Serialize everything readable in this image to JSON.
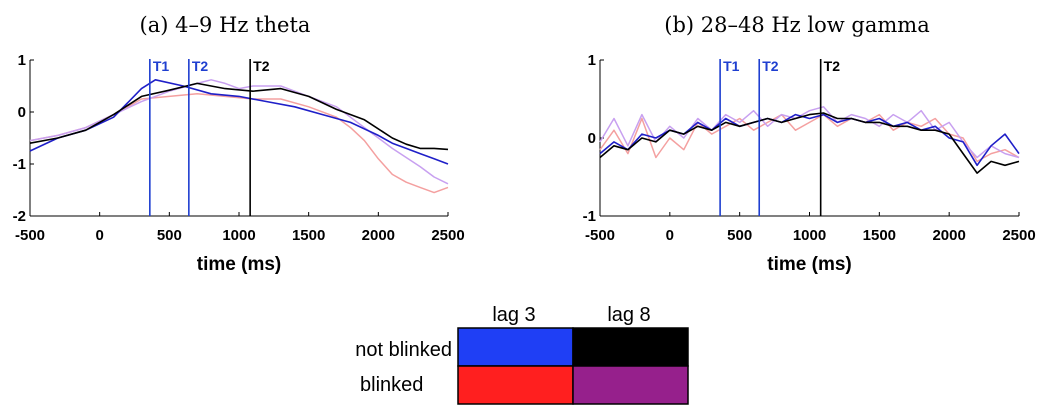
{
  "chart_data": [
    {
      "type": "line",
      "title": "(a) 4–9 Hz theta",
      "xlabel": "time (ms)",
      "ylabel": "",
      "xlim": [
        -500,
        2500
      ],
      "ylim": [
        -2,
        1
      ],
      "xticks": [
        -500,
        0,
        500,
        1000,
        1500,
        2000,
        2500
      ],
      "yticks": [
        -2,
        -1,
        0,
        1
      ],
      "markers": [
        {
          "label": "T1",
          "x": 360,
          "color": "#1f3fd0"
        },
        {
          "label": "T2",
          "x": 640,
          "color": "#1f3fd0"
        },
        {
          "label": "T2",
          "x": 1080,
          "color": "#000000"
        }
      ],
      "series": [
        {
          "group": "lag 3 / blinked",
          "color": "#f4a0a0",
          "x": [
            -500,
            -300,
            -100,
            100,
            300,
            500,
            700,
            900,
            1100,
            1300,
            1500,
            1700,
            1800,
            1900,
            2000,
            2100,
            2200,
            2300,
            2400,
            2500
          ],
          "y": [
            -0.55,
            -0.45,
            -0.3,
            -0.05,
            0.25,
            0.3,
            0.35,
            0.3,
            0.25,
            0.25,
            0.1,
            -0.1,
            -0.3,
            -0.55,
            -0.9,
            -1.2,
            -1.35,
            -1.45,
            -1.55,
            -1.45
          ]
        },
        {
          "group": "lag 8 / blinked",
          "color": "#c8a0f0",
          "x": [
            -500,
            -300,
            -100,
            100,
            300,
            500,
            700,
            800,
            900,
            1000,
            1100,
            1300,
            1500,
            1700,
            1900,
            2100,
            2300,
            2400,
            2500
          ],
          "y": [
            -0.55,
            -0.45,
            -0.3,
            -0.05,
            0.2,
            0.4,
            0.55,
            0.62,
            0.55,
            0.45,
            0.5,
            0.5,
            0.3,
            0.1,
            -0.3,
            -0.7,
            -1.05,
            -1.25,
            -1.38
          ]
        },
        {
          "group": "lag 3 / not blinked",
          "color": "#1f1fc8",
          "x": [
            -500,
            -300,
            -100,
            100,
            300,
            400,
            600,
            800,
            1000,
            1200,
            1400,
            1600,
            1800,
            2000,
            2100,
            2200,
            2300,
            2400,
            2500
          ],
          "y": [
            -0.75,
            -0.5,
            -0.35,
            -0.1,
            0.45,
            0.62,
            0.5,
            0.35,
            0.3,
            0.2,
            0.1,
            -0.05,
            -0.2,
            -0.45,
            -0.6,
            -0.7,
            -0.8,
            -0.9,
            -1.0
          ]
        },
        {
          "group": "lag 8 / not blinked",
          "color": "#000000",
          "x": [
            -500,
            -300,
            -100,
            100,
            300,
            500,
            700,
            900,
            1100,
            1300,
            1500,
            1700,
            1900,
            2100,
            2200,
            2300,
            2400,
            2500
          ],
          "y": [
            -0.6,
            -0.5,
            -0.35,
            -0.05,
            0.3,
            0.42,
            0.55,
            0.45,
            0.4,
            0.45,
            0.3,
            0.05,
            -0.15,
            -0.5,
            -0.62,
            -0.7,
            -0.7,
            -0.72
          ]
        }
      ]
    },
    {
      "type": "line",
      "title": "(b) 28–48 Hz low gamma",
      "xlabel": "time (ms)",
      "ylabel": "",
      "xlim": [
        -500,
        2500
      ],
      "ylim": [
        -1,
        1
      ],
      "xticks": [
        -500,
        0,
        500,
        1000,
        1500,
        2000,
        2500
      ],
      "yticks": [
        -1,
        0,
        1
      ],
      "markers": [
        {
          "label": "T1",
          "x": 360,
          "color": "#1f3fd0"
        },
        {
          "label": "T2",
          "x": 640,
          "color": "#1f3fd0"
        },
        {
          "label": "T2",
          "x": 1080,
          "color": "#000000"
        }
      ],
      "series": [
        {
          "group": "lag 3 / blinked",
          "color": "#f4a0a0",
          "x": [
            -500,
            -400,
            -300,
            -200,
            -100,
            0,
            100,
            200,
            300,
            400,
            500,
            600,
            700,
            800,
            900,
            1000,
            1100,
            1200,
            1300,
            1400,
            1500,
            1600,
            1700,
            1800,
            1900,
            2000,
            2100,
            2200,
            2300,
            2400,
            2500
          ],
          "y": [
            -0.15,
            0.1,
            -0.2,
            0.25,
            -0.25,
            0.0,
            -0.15,
            0.2,
            0.05,
            0.15,
            0.25,
            0.1,
            0.2,
            0.3,
            0.1,
            0.2,
            0.3,
            0.15,
            0.25,
            0.2,
            0.3,
            0.1,
            0.2,
            0.15,
            0.25,
            0.05,
            0.0,
            -0.3,
            -0.2,
            -0.15,
            -0.25
          ]
        },
        {
          "group": "lag 8 / blinked",
          "color": "#c8a0f0",
          "x": [
            -500,
            -400,
            -300,
            -200,
            -100,
            0,
            100,
            200,
            300,
            400,
            500,
            600,
            700,
            800,
            900,
            1000,
            1100,
            1200,
            1300,
            1400,
            1500,
            1600,
            1700,
            1800,
            1900,
            2000,
            2100,
            2200,
            2300,
            2400,
            2500
          ],
          "y": [
            -0.05,
            0.25,
            -0.1,
            0.3,
            -0.05,
            0.15,
            0.0,
            0.25,
            0.1,
            0.3,
            0.2,
            0.35,
            0.15,
            0.3,
            0.25,
            0.35,
            0.4,
            0.2,
            0.3,
            0.25,
            0.15,
            0.3,
            0.2,
            0.35,
            0.1,
            0.2,
            -0.05,
            -0.25,
            -0.1,
            -0.2,
            -0.25
          ]
        },
        {
          "group": "lag 3 / not blinked",
          "color": "#1f1fc8",
          "x": [
            -500,
            -400,
            -300,
            -200,
            -100,
            0,
            100,
            200,
            300,
            400,
            500,
            600,
            700,
            800,
            900,
            1000,
            1100,
            1200,
            1300,
            1400,
            1500,
            1600,
            1700,
            1800,
            1900,
            2000,
            2100,
            2200,
            2300,
            2400,
            2500
          ],
          "y": [
            -0.2,
            -0.05,
            -0.15,
            0.05,
            0.0,
            0.1,
            0.05,
            0.2,
            0.1,
            0.25,
            0.15,
            0.2,
            0.25,
            0.2,
            0.3,
            0.25,
            0.3,
            0.2,
            0.25,
            0.2,
            0.25,
            0.15,
            0.2,
            0.1,
            0.15,
            0.0,
            -0.05,
            -0.35,
            -0.1,
            0.05,
            -0.2
          ]
        },
        {
          "group": "lag 8 / not blinked",
          "color": "#000000",
          "x": [
            -500,
            -400,
            -300,
            -200,
            -100,
            0,
            100,
            200,
            300,
            400,
            500,
            600,
            700,
            800,
            900,
            1000,
            1100,
            1200,
            1300,
            1400,
            1500,
            1600,
            1700,
            1800,
            1900,
            2000,
            2100,
            2200,
            2300,
            2400,
            2500
          ],
          "y": [
            -0.25,
            -0.1,
            -0.15,
            0.0,
            -0.05,
            0.1,
            0.05,
            0.15,
            0.1,
            0.2,
            0.15,
            0.2,
            0.25,
            0.2,
            0.25,
            0.3,
            0.32,
            0.25,
            0.25,
            0.2,
            0.2,
            0.15,
            0.15,
            0.1,
            0.1,
            0.05,
            -0.2,
            -0.45,
            -0.3,
            -0.35,
            -0.3
          ]
        }
      ]
    }
  ],
  "legend": {
    "col_labels": [
      "lag 3",
      "lag 8"
    ],
    "row_labels": [
      "not blinked",
      "blinked"
    ],
    "colors": [
      [
        "#1f3ff5",
        "#000000"
      ],
      [
        "#ff1f1f",
        "#96208c"
      ]
    ]
  }
}
